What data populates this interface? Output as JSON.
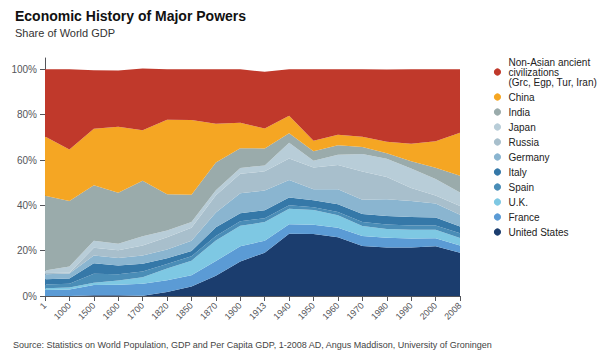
{
  "chart_data": {
    "type": "area",
    "title": "Economic History of Major Powers",
    "subtitle": "Share of World GDP",
    "annotations": [
      "Source: Statistics on World Population, GDP and Per Capita GDP, 1-2008 AD, Angus Maddison, University of Groningen"
    ],
    "stacked": true,
    "grid": false,
    "legend": "right",
    "categories": [
      "1",
      "1000",
      "1500",
      "1600",
      "1700",
      "1820",
      "1850",
      "1870",
      "1900",
      "1913",
      "1940",
      "1950",
      "1960",
      "1970",
      "1980",
      "1990",
      "2000",
      "2008"
    ],
    "ylim": [
      0,
      105
    ],
    "yticks": [
      {
        "value": 0,
        "label": "0%"
      },
      {
        "value": 20,
        "label": "20%"
      },
      {
        "value": 40,
        "label": "40%"
      },
      {
        "value": 60,
        "label": "60%"
      },
      {
        "value": 80,
        "label": "80%"
      },
      {
        "value": 100,
        "label": "100%"
      }
    ],
    "series": [
      {
        "name": "United States",
        "color": "#1b3d6e",
        "values": [
          0.0,
          0.0,
          0.3,
          0.3,
          0.1,
          1.8,
          4.2,
          8.9,
          15.2,
          19.1,
          27.5,
          27.3,
          25.9,
          22.1,
          21.4,
          21.4,
          21.9,
          19.1
        ]
      },
      {
        "name": "France",
        "color": "#5b9bd5",
        "values": [
          2.6,
          2.9,
          4.5,
          4.7,
          5.3,
          5.1,
          4.9,
          6.5,
          6.8,
          5.3,
          4.2,
          4.1,
          4.2,
          4.4,
          4.3,
          4.0,
          3.6,
          3.2
        ]
      },
      {
        "name": "U.K.",
        "color": "#7ec8e3",
        "values": [
          0.8,
          0.8,
          1.1,
          1.8,
          2.9,
          5.2,
          6.5,
          9.1,
          9.0,
          8.2,
          6.8,
          6.5,
          5.5,
          4.4,
          3.9,
          3.8,
          3.7,
          3.3
        ]
      },
      {
        "name": "Spain",
        "color": "#4a8db7",
        "values": [
          1.7,
          1.7,
          3.9,
          2.8,
          2.5,
          2.0,
          1.9,
          2.0,
          2.0,
          1.7,
          1.5,
          1.2,
          1.5,
          1.8,
          1.9,
          1.9,
          1.9,
          2.1
        ]
      },
      {
        "name": "Italy",
        "color": "#3578a8",
        "values": [
          2.3,
          2.3,
          4.7,
          3.9,
          3.4,
          2.5,
          2.4,
          3.8,
          3.5,
          3.5,
          3.5,
          3.1,
          3.4,
          3.5,
          3.8,
          3.8,
          3.5,
          3.0
        ]
      },
      {
        "name": "Germany",
        "color": "#8ab5d0",
        "values": [
          2.2,
          2.2,
          3.4,
          3.3,
          3.7,
          3.9,
          4.5,
          6.5,
          8.8,
          8.7,
          7.7,
          4.9,
          6.6,
          6.3,
          7.4,
          7.0,
          6.2,
          5.2
        ]
      },
      {
        "name": "Russia",
        "color": "#a8bfcc",
        "values": [
          0.5,
          0.4,
          3.4,
          3.4,
          4.4,
          5.4,
          5.7,
          7.6,
          8.6,
          8.5,
          9.5,
          9.6,
          10.7,
          12.4,
          9.8,
          5.8,
          3.5,
          3.8
        ]
      },
      {
        "name": "Japan",
        "color": "#b8cdd8",
        "values": [
          1.2,
          2.7,
          3.1,
          2.9,
          4.1,
          3.0,
          2.6,
          2.3,
          2.6,
          2.6,
          6.9,
          3.0,
          4.5,
          7.7,
          8.0,
          8.6,
          7.3,
          6.0
        ]
      },
      {
        "name": "India",
        "color": "#9aabab",
        "values": [
          32.9,
          28.9,
          24.5,
          22.4,
          24.4,
          16.0,
          12.0,
          12.2,
          8.7,
          7.5,
          4.2,
          4.2,
          4.2,
          3.1,
          2.5,
          3.1,
          5.0,
          7.3
        ]
      },
      {
        "name": "China",
        "color": "#f5a623",
        "values": [
          26.2,
          22.7,
          24.9,
          29.2,
          22.3,
          32.9,
          33.0,
          17.1,
          11.2,
          8.8,
          7.7,
          4.6,
          4.6,
          4.6,
          5.0,
          7.8,
          11.7,
          19.0
        ]
      },
      {
        "name": "Non-Asian ancient\ncivilizations\n(Grc, Egp, Tur, Iran)",
        "color": "#c0392b",
        "values": [
          29.6,
          35.4,
          25.8,
          24.8,
          27.3,
          22.2,
          22.3,
          24.0,
          23.6,
          25.0,
          20.5,
          31.5,
          28.9,
          29.7,
          31.9,
          32.8,
          31.7,
          28.0
        ]
      }
    ]
  }
}
